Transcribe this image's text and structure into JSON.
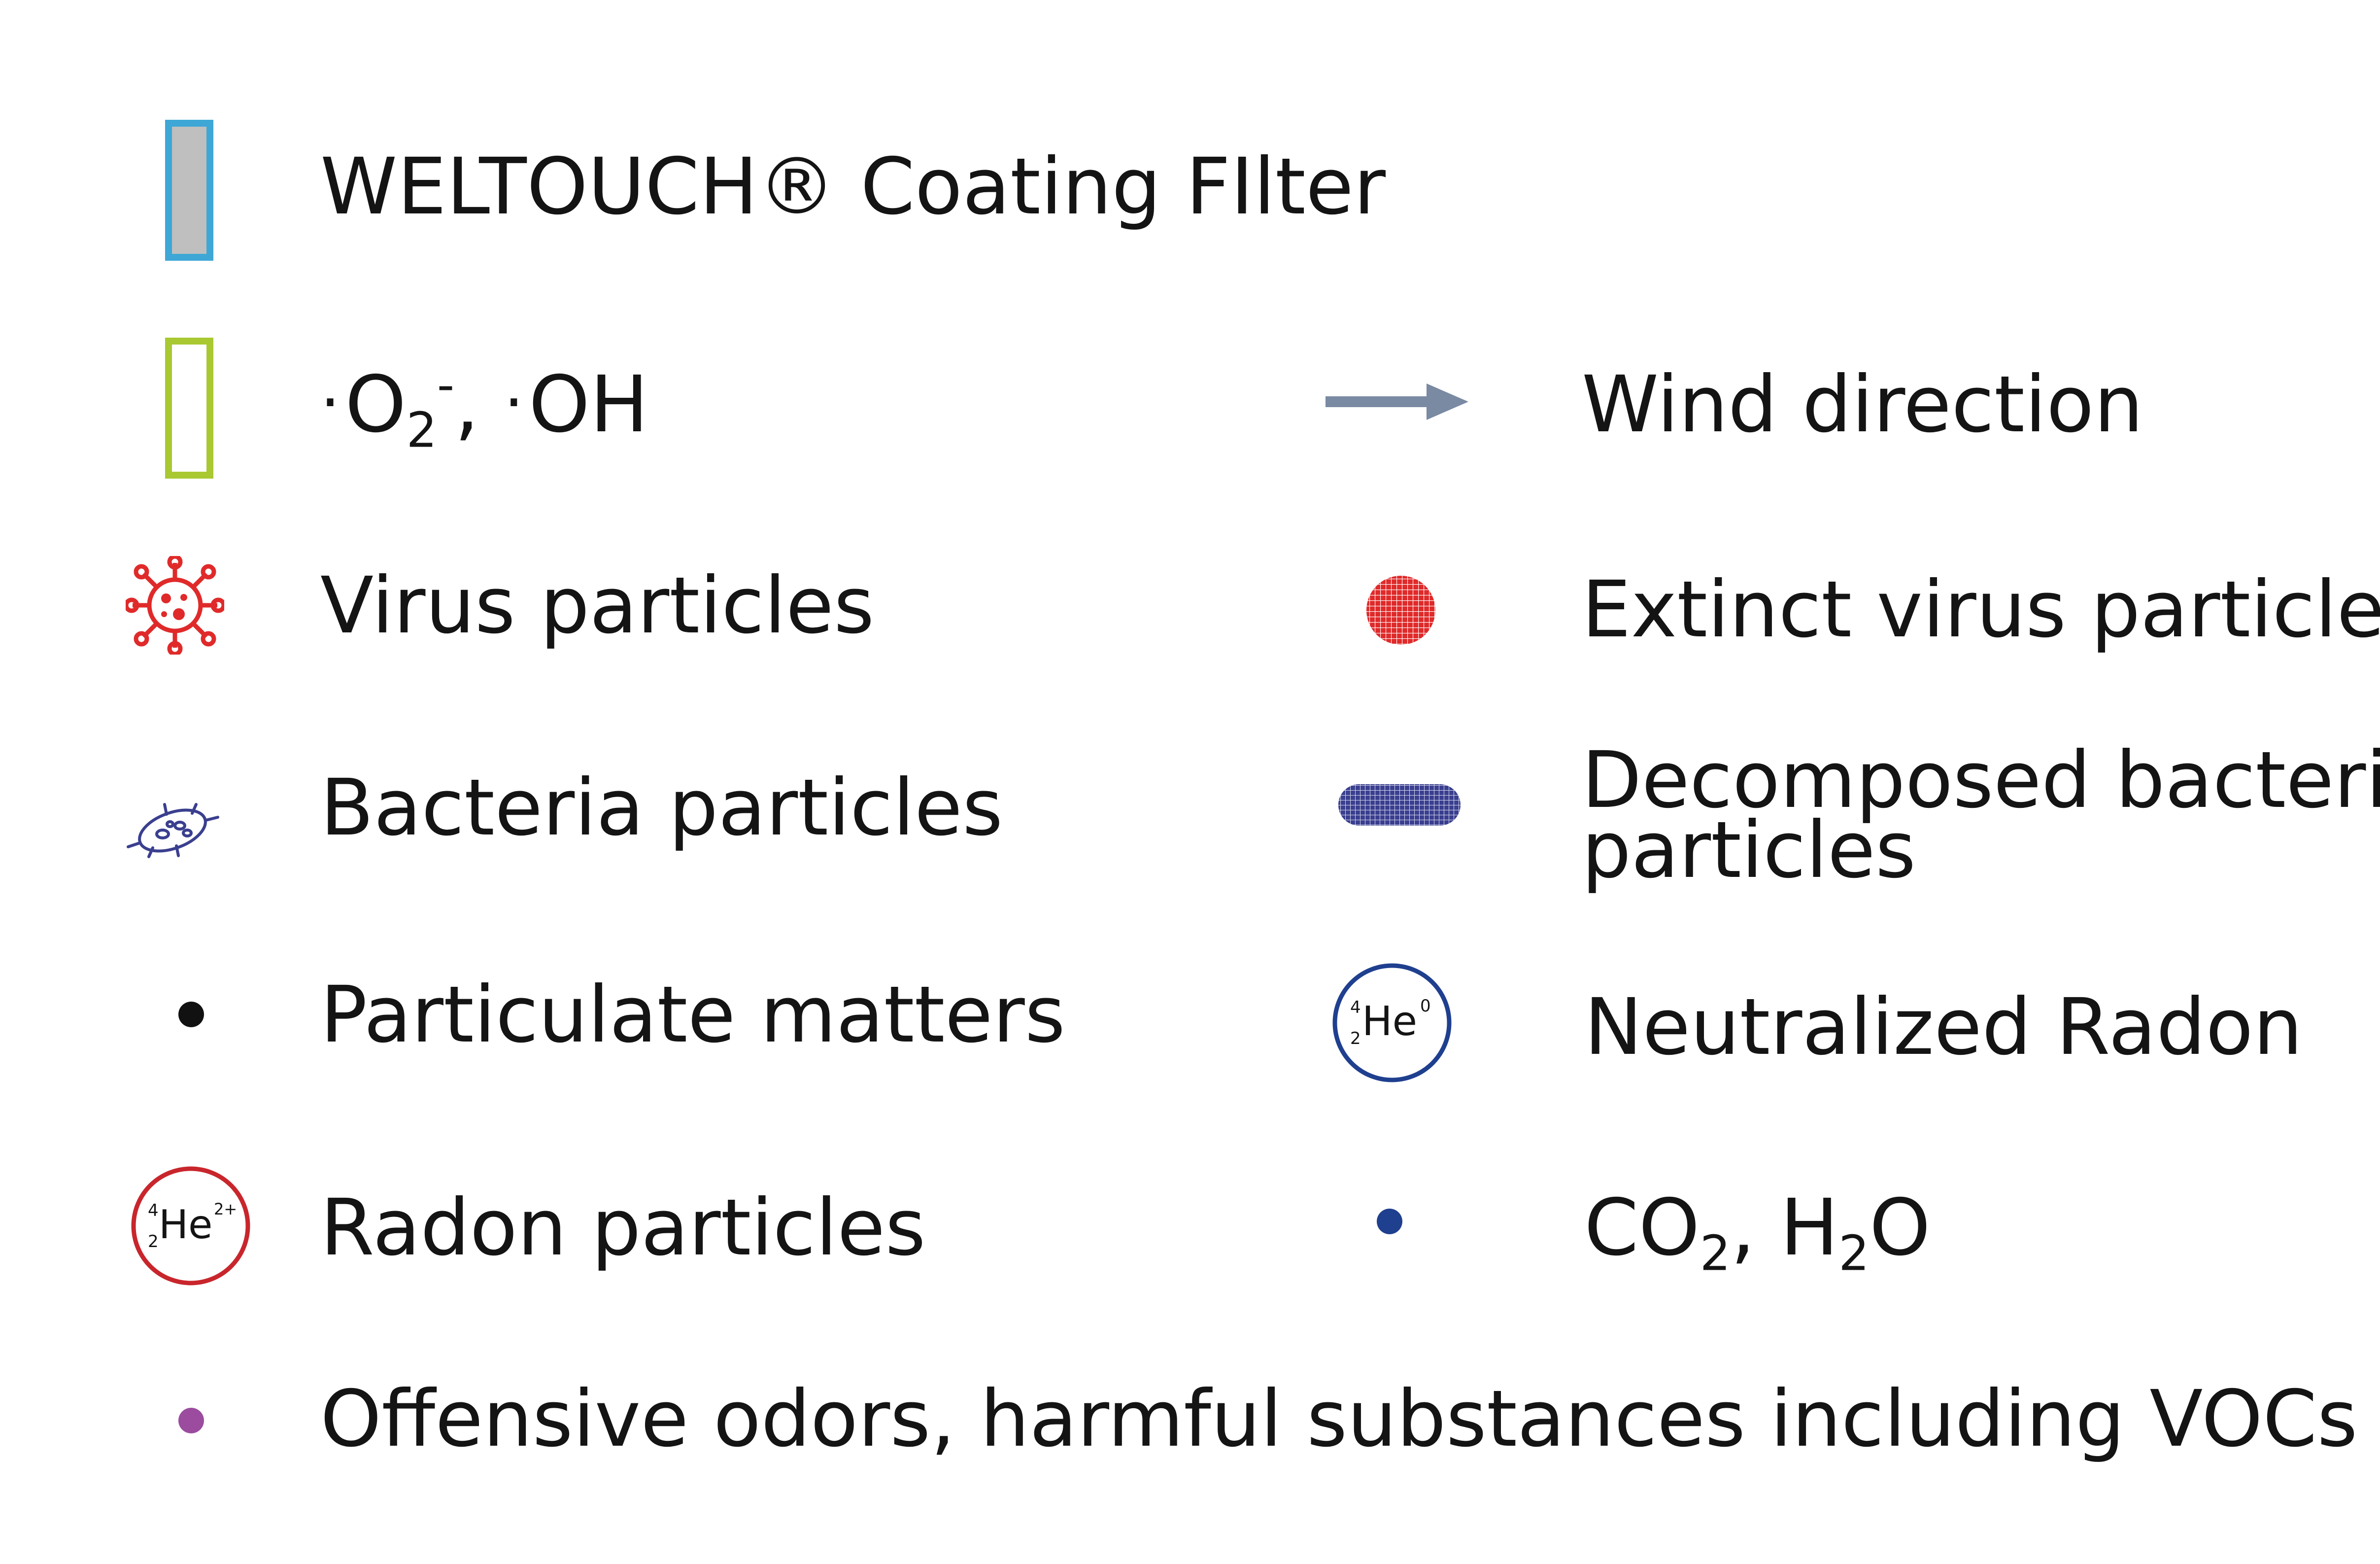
{
  "legend": {
    "filter": {
      "label": "WELTOUCH® Coating FIlter",
      "icon": "coating-filter-swatch",
      "fill": "#bfbfbf",
      "stroke": "#3ea7d6"
    },
    "radicals": {
      "dot1": "·",
      "o2": "O",
      "o2_sub": "2",
      "o2_sup": "-",
      "sep": ", ",
      "dot2": "·",
      "oh": "OH",
      "icon": "radical-swatch",
      "stroke": "#a9c832"
    },
    "wind": {
      "label": "Wind direction",
      "icon": "arrow-right-icon",
      "color": "#7a8aa3"
    },
    "virus": {
      "label": "Virus particles",
      "icon": "virus-icon",
      "color": "#e02a2a"
    },
    "extinct_virus": {
      "label": "Extinct virus particles",
      "icon": "extinct-virus-icon",
      "color": "#e02a2a"
    },
    "bacteria": {
      "label": "Bacteria particles",
      "icon": "bacteria-icon",
      "color": "#3a3f8f"
    },
    "decomposed_bacteria": {
      "line1": "Decomposed bacteria",
      "line2": "particles",
      "icon": "decomposed-bacteria-icon",
      "color": "#3a3f8f"
    },
    "particulate": {
      "label": "Particulate matters",
      "icon": "particulate-dot-icon",
      "color": "#111111"
    },
    "neutralized_radon": {
      "label": "Neutralized Radon",
      "icon": "neutralized-helium-icon",
      "color": "#1f3f8f",
      "mass": "4",
      "atomic": "2",
      "symbol": "He",
      "charge": "0"
    },
    "radon": {
      "label": "Radon particles",
      "icon": "helium-ion-icon",
      "color": "#c8262c",
      "mass": "4",
      "atomic": "2",
      "symbol": "He",
      "charge": "2+"
    },
    "co2_h2o": {
      "co": "CO",
      "co_sub": "2",
      "sep": ", ",
      "h": "H",
      "h_sub": "2",
      "o": "O",
      "icon": "co2-h2o-dot-icon",
      "color": "#1f3f8f"
    },
    "odors": {
      "label": "Offensive odors, harmful substances including VOCs",
      "icon": "odor-dot-icon",
      "color": "#9b4c9f"
    }
  }
}
